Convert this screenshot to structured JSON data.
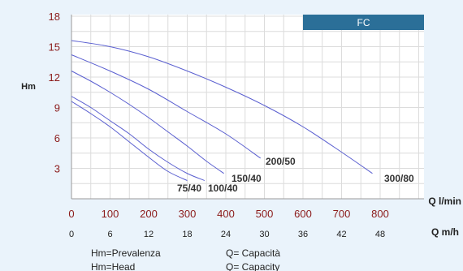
{
  "chart_data": {
    "type": "line",
    "ylabel": "Hm",
    "ylim": [
      0,
      18
    ],
    "yticks": [
      3,
      6,
      9,
      12,
      15,
      18
    ],
    "x_lmin": {
      "label": "Q l/min",
      "range": [
        0,
        900
      ],
      "ticks": [
        0,
        100,
        200,
        300,
        400,
        500,
        600,
        700,
        800
      ]
    },
    "x_m3h": {
      "label": "Q m/h",
      "range": [
        0,
        54
      ],
      "ticks": [
        0,
        6,
        12,
        18,
        24,
        30,
        36,
        42,
        48
      ]
    },
    "badge": "FC",
    "grid": true,
    "series": [
      {
        "name": "75/40",
        "x": [
          0,
          50,
          100,
          150,
          200,
          250,
          300
        ],
        "y": [
          9.6,
          8.4,
          7.1,
          5.6,
          4.1,
          2.7,
          1.8
        ]
      },
      {
        "name": "100/40",
        "x": [
          0,
          50,
          100,
          150,
          200,
          250,
          300,
          345
        ],
        "y": [
          10.1,
          9.0,
          7.7,
          6.4,
          4.9,
          3.6,
          2.5,
          1.8
        ]
      },
      {
        "name": "150/40",
        "x": [
          0,
          50,
          100,
          150,
          200,
          250,
          300,
          350,
          395
        ],
        "y": [
          12.6,
          11.6,
          10.5,
          9.3,
          8.0,
          6.6,
          5.2,
          3.7,
          2.5
        ]
      },
      {
        "name": "200/50",
        "x": [
          0,
          100,
          200,
          300,
          400,
          490
        ],
        "y": [
          14.2,
          12.6,
          10.8,
          8.6,
          6.4,
          4.0
        ]
      },
      {
        "name": "300/80",
        "x": [
          0,
          100,
          200,
          300,
          400,
          500,
          600,
          700,
          780
        ],
        "y": [
          15.6,
          15.0,
          14.0,
          12.6,
          11.0,
          9.2,
          7.1,
          4.6,
          2.5
        ]
      }
    ],
    "labels": [
      {
        "series": "75/40",
        "text": "75/40"
      },
      {
        "series": "100/40",
        "text": "100/40"
      },
      {
        "series": "150/40",
        "text": "150/40"
      },
      {
        "series": "200/50",
        "text": "200/50"
      },
      {
        "series": "300/80",
        "text": "300/80"
      }
    ],
    "curve_color": "#5a5fd0",
    "badge_color": "#2b6f98",
    "legend": [
      {
        "left": "Hm=Prevalenza",
        "right": "Q= Capacità"
      },
      {
        "left": "Hm=Head",
        "right": "Q= Capacity"
      }
    ]
  }
}
